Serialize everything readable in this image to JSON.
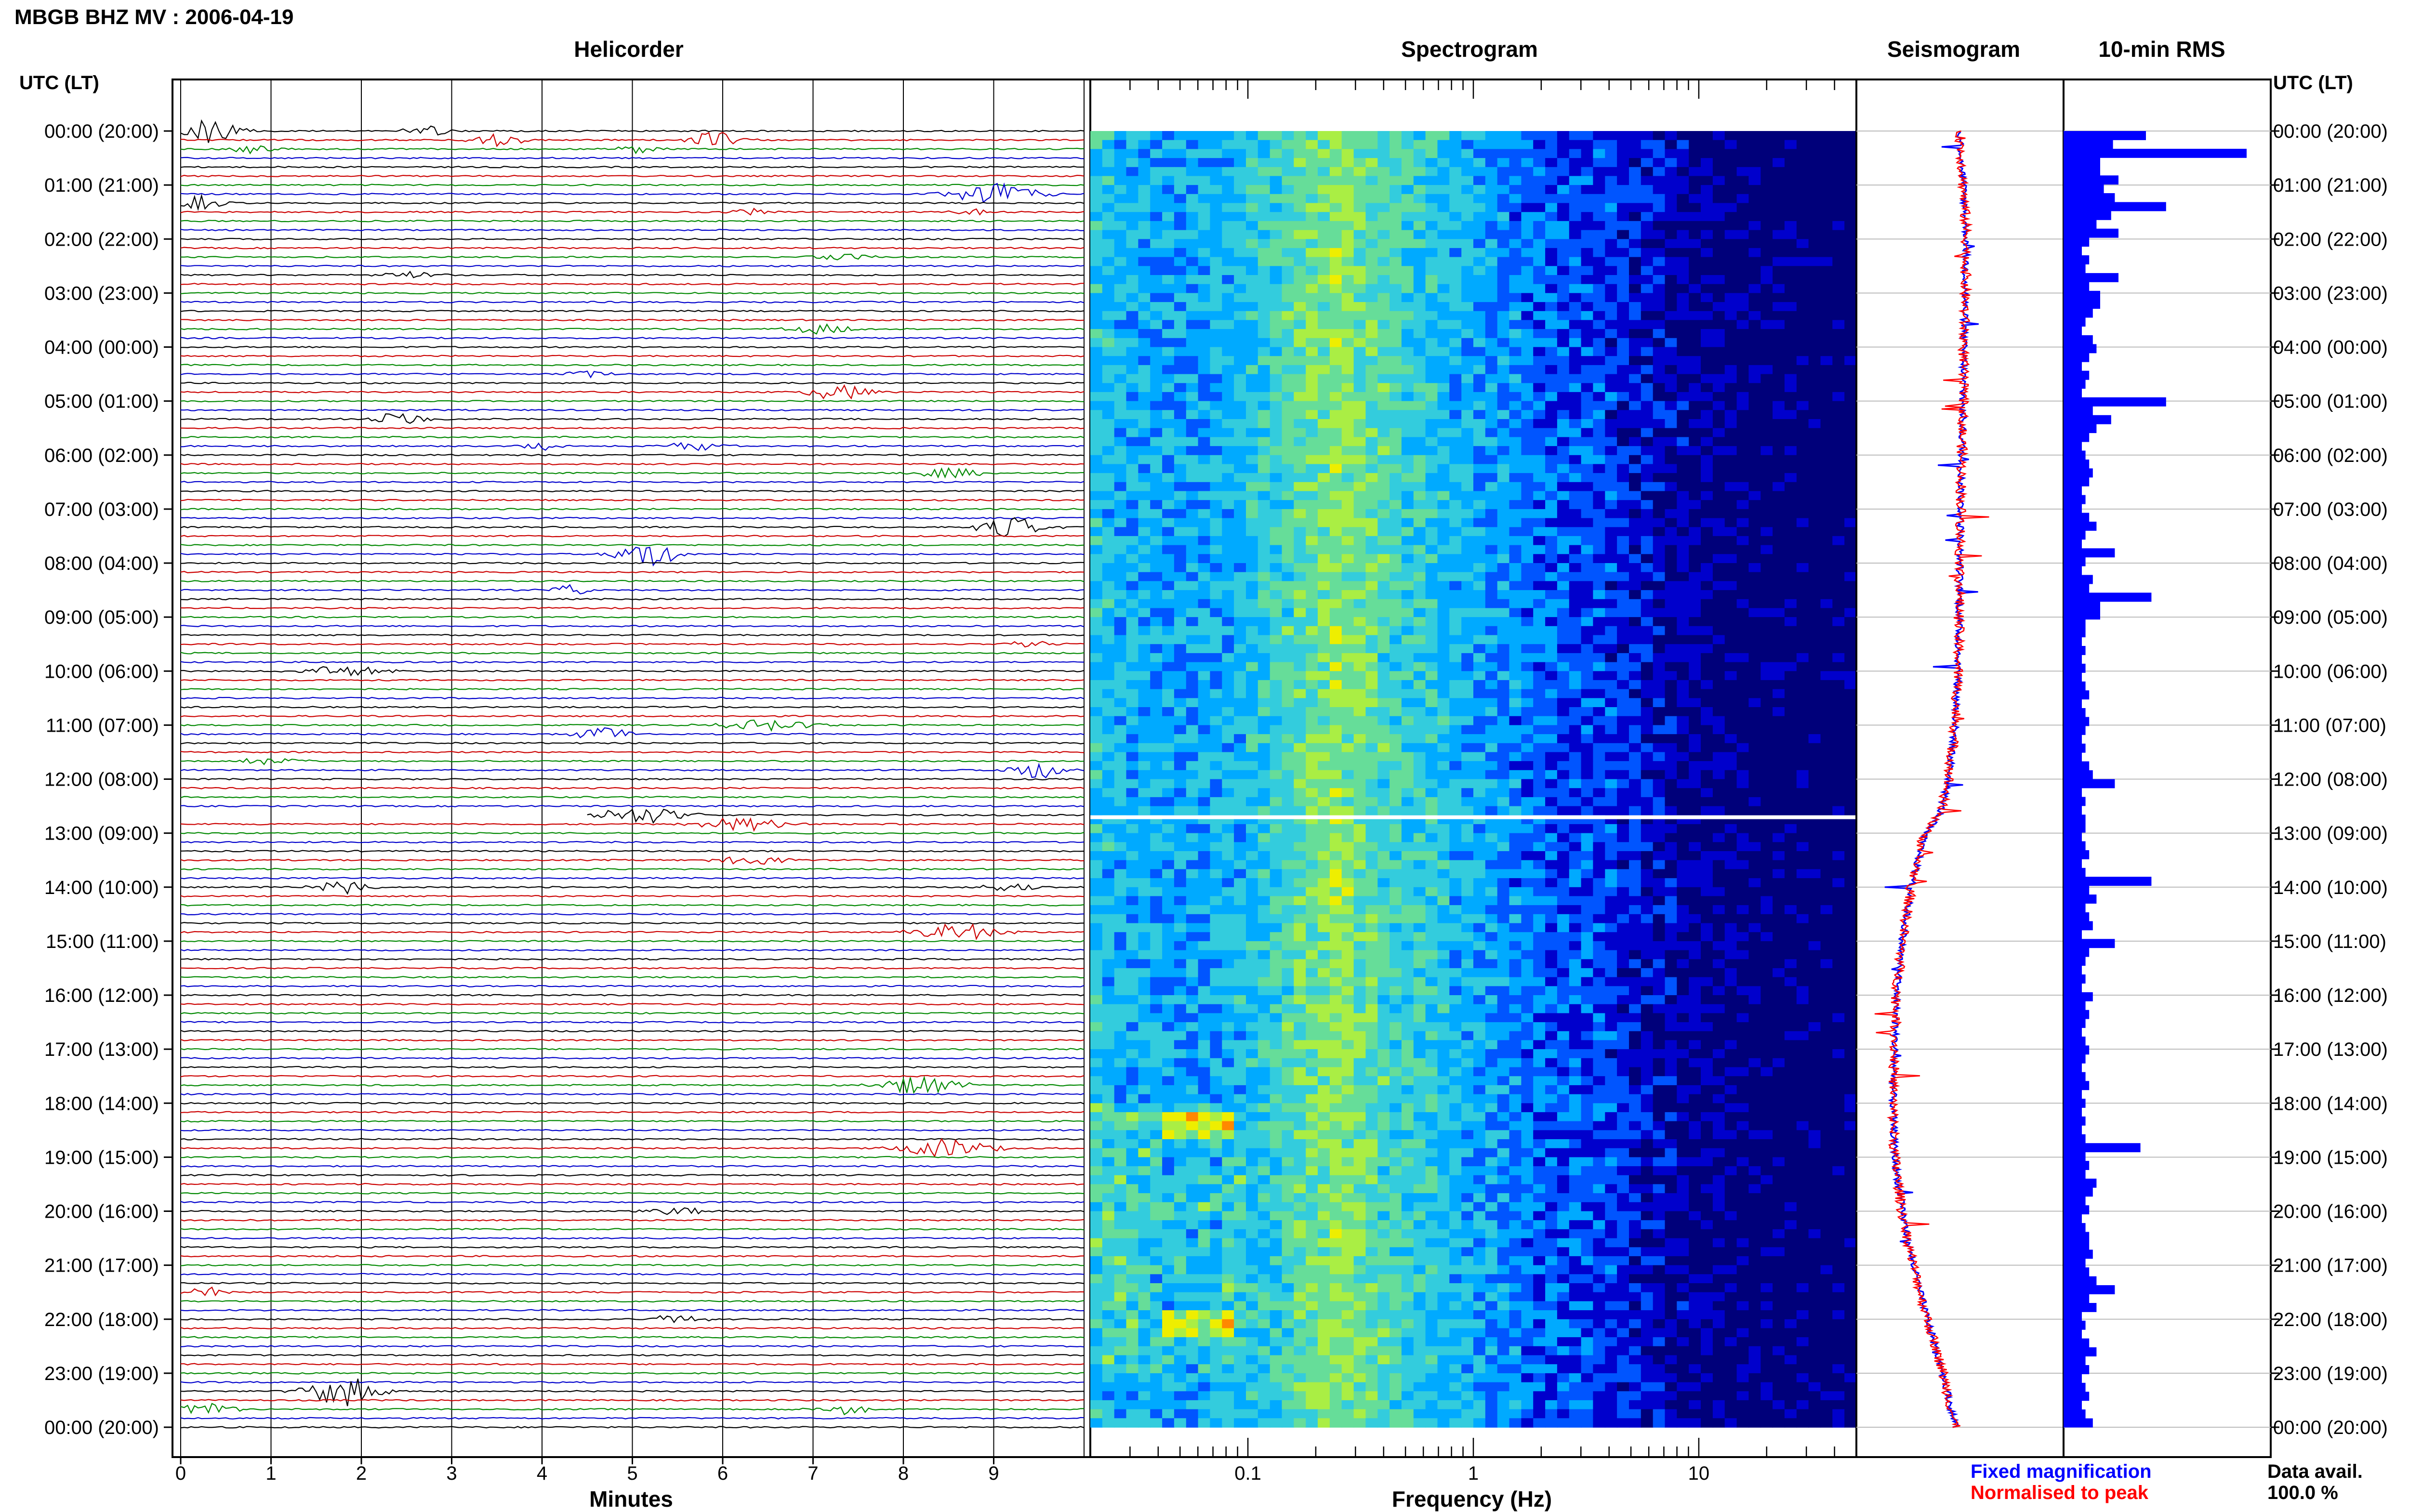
{
  "header": {
    "title": "MBGB BHZ MV : 2006-04-19"
  },
  "panels": {
    "helicorder": "Helicorder",
    "spectrogram": "Spectrogram",
    "seismogram": "Seismogram",
    "rms": "10-min RMS"
  },
  "axis_labels": {
    "time_left": "UTC (LT)",
    "time_right": "UTC (LT)",
    "minutes": "Minutes",
    "frequency": "Frequency (Hz)"
  },
  "time_ticks": [
    "00:00 (20:00)",
    "01:00 (21:00)",
    "02:00 (22:00)",
    "03:00 (23:00)",
    "04:00 (00:00)",
    "05:00 (01:00)",
    "06:00 (02:00)",
    "07:00 (03:00)",
    "08:00 (04:00)",
    "09:00 (05:00)",
    "10:00 (06:00)",
    "11:00 (07:00)",
    "12:00 (08:00)",
    "13:00 (09:00)",
    "14:00 (10:00)",
    "15:00 (11:00)",
    "16:00 (12:00)",
    "17:00 (13:00)",
    "18:00 (14:00)",
    "19:00 (15:00)",
    "20:00 (16:00)",
    "21:00 (17:00)",
    "22:00 (18:00)",
    "23:00 (19:00)",
    "00:00 (20:00)"
  ],
  "minute_ticks": [
    "0",
    "1",
    "2",
    "3",
    "4",
    "5",
    "6",
    "7",
    "8",
    "9"
  ],
  "frequency_ticks": [
    "0.1",
    "1",
    "10"
  ],
  "legend": {
    "fixed": "Fixed magnification",
    "normalised": "Normalised to peak",
    "fixed_color": "#0000ff",
    "normalised_color": "#ff0000"
  },
  "data_availability": {
    "label": "Data avail.",
    "value": "100.0 %"
  },
  "trace_colors": [
    "#000000",
    "#cc0000",
    "#008800",
    "#0000cc"
  ],
  "chart_data": [
    {
      "type": "line",
      "panel": "helicorder",
      "x_range_minutes": [
        0,
        10
      ],
      "y_range_hours": [
        0,
        24
      ],
      "rows_per_hour": 6,
      "events": [
        {
          "hour": 0.0,
          "minute": 2.7,
          "amp": 0.45,
          "dur": 0.5
        },
        {
          "hour": 0.0,
          "minute": 0.3,
          "amp": 1.0,
          "dur": 0.7
        },
        {
          "hour": 0.17,
          "minute": 3.5,
          "amp": 0.45,
          "dur": 0.6
        },
        {
          "hour": 0.17,
          "minute": 5.9,
          "amp": 0.55,
          "dur": 0.6
        },
        {
          "hour": 0.33,
          "minute": 0.8,
          "amp": 0.3,
          "dur": 0.5
        },
        {
          "hour": 0.33,
          "minute": 5.1,
          "amp": 0.3,
          "dur": 0.5
        },
        {
          "hour": 1.17,
          "minute": 9.0,
          "amp": 0.8,
          "dur": 0.9
        },
        {
          "hour": 1.33,
          "minute": 0.2,
          "amp": 0.5,
          "dur": 0.5
        },
        {
          "hour": 1.5,
          "minute": 6.3,
          "amp": 0.3,
          "dur": 0.4
        },
        {
          "hour": 1.5,
          "minute": 8.7,
          "amp": 0.25,
          "dur": 0.4
        },
        {
          "hour": 2.33,
          "minute": 7.3,
          "amp": 0.3,
          "dur": 0.6
        },
        {
          "hour": 2.67,
          "minute": 2.5,
          "amp": 0.3,
          "dur": 0.6
        },
        {
          "hour": 3.67,
          "minute": 7.1,
          "amp": 0.35,
          "dur": 0.7
        },
        {
          "hour": 4.5,
          "minute": 4.5,
          "amp": 0.25,
          "dur": 0.5
        },
        {
          "hour": 4.83,
          "minute": 7.3,
          "amp": 0.55,
          "dur": 0.7
        },
        {
          "hour": 5.33,
          "minute": 2.4,
          "amp": 0.45,
          "dur": 0.7
        },
        {
          "hour": 5.83,
          "minute": 4.0,
          "amp": 0.3,
          "dur": 0.5
        },
        {
          "hour": 5.83,
          "minute": 5.7,
          "amp": 0.35,
          "dur": 0.6
        },
        {
          "hour": 6.33,
          "minute": 8.5,
          "amp": 0.35,
          "dur": 0.8
        },
        {
          "hour": 7.33,
          "minute": 9.2,
          "amp": 0.7,
          "dur": 0.7
        },
        {
          "hour": 7.83,
          "minute": 5.2,
          "amp": 0.8,
          "dur": 0.7
        },
        {
          "hour": 8.5,
          "minute": 4.3,
          "amp": 0.35,
          "dur": 0.5
        },
        {
          "hour": 9.5,
          "minute": 9.4,
          "amp": 0.25,
          "dur": 0.6
        },
        {
          "hour": 10.0,
          "minute": 1.8,
          "amp": 0.35,
          "dur": 0.9
        },
        {
          "hour": 11.0,
          "minute": 6.5,
          "amp": 0.4,
          "dur": 1.0
        },
        {
          "hour": 11.17,
          "minute": 4.7,
          "amp": 0.5,
          "dur": 0.6
        },
        {
          "hour": 11.67,
          "minute": 1.0,
          "amp": 0.3,
          "dur": 0.6
        },
        {
          "hour": 11.83,
          "minute": 9.5,
          "amp": 0.6,
          "dur": 0.6
        },
        {
          "hour": 12.67,
          "minute": 5.1,
          "amp": 0.6,
          "dur": 1.0
        },
        {
          "hour": 12.83,
          "minute": 6.2,
          "amp": 0.45,
          "dur": 1.0
        },
        {
          "hour": 13.5,
          "minute": 6.3,
          "amp": 0.3,
          "dur": 0.8
        },
        {
          "hour": 14.0,
          "minute": 1.8,
          "amp": 0.45,
          "dur": 0.6
        },
        {
          "hour": 14.0,
          "minute": 9.2,
          "amp": 0.35,
          "dur": 0.6
        },
        {
          "hour": 14.83,
          "minute": 8.6,
          "amp": 0.6,
          "dur": 0.9
        },
        {
          "hour": 17.67,
          "minute": 8.2,
          "amp": 0.7,
          "dur": 0.8
        },
        {
          "hour": 18.83,
          "minute": 8.5,
          "amp": 0.7,
          "dur": 0.9
        },
        {
          "hour": 20.0,
          "minute": 5.5,
          "amp": 0.3,
          "dur": 0.6
        },
        {
          "hour": 21.5,
          "minute": 0.3,
          "amp": 0.4,
          "dur": 0.5
        },
        {
          "hour": 22.0,
          "minute": 5.5,
          "amp": 0.3,
          "dur": 0.6
        },
        {
          "hour": 23.33,
          "minute": 1.8,
          "amp": 1.0,
          "dur": 0.8
        },
        {
          "hour": 23.67,
          "minute": 0.3,
          "amp": 0.5,
          "dur": 0.6
        },
        {
          "hour": 23.67,
          "minute": 7.3,
          "amp": 0.4,
          "dur": 0.6
        }
      ],
      "gap": {
        "hour": 12.67,
        "minute_start": 0,
        "minute_end": 4.5
      }
    },
    {
      "type": "heatmap",
      "panel": "spectrogram",
      "x_scale": "log",
      "x_range_hz": [
        0.02,
        50
      ],
      "y_range_hours": [
        0,
        24
      ],
      "colormap": [
        "#00007a",
        "#0000cc",
        "#0055ff",
        "#00aaff",
        "#33ccdd",
        "#66dd99",
        "#aaee44",
        "#eeee00",
        "#ff8800",
        "#ff2200"
      ],
      "profile_hz": [
        0.02,
        0.05,
        0.1,
        0.15,
        0.25,
        0.4,
        0.7,
        1.2,
        2.5,
        5,
        10,
        20,
        50
      ],
      "profile_level": [
        0.42,
        0.34,
        0.4,
        0.5,
        0.62,
        0.5,
        0.42,
        0.33,
        0.25,
        0.18,
        0.08,
        0.03,
        0.0
      ],
      "data_gap_hours": [
        12.67,
        12.72
      ]
    },
    {
      "type": "line",
      "panel": "seismogram",
      "series": [
        {
          "name": "Fixed magnification",
          "color": "#0000ff"
        },
        {
          "name": "Normalised to peak",
          "color": "#ff0000"
        }
      ],
      "x_norm": [
        -1,
        1
      ],
      "hours": [
        0,
        2,
        4,
        6,
        8,
        10,
        11,
        12,
        12.67,
        13,
        14,
        15,
        16,
        17,
        18,
        19,
        20,
        21,
        22,
        23,
        24
      ],
      "offset": [
        0.0,
        0.07,
        0.04,
        0.02,
        0.0,
        -0.02,
        -0.05,
        -0.12,
        -0.22,
        -0.38,
        -0.52,
        -0.62,
        -0.68,
        -0.7,
        -0.72,
        -0.7,
        -0.62,
        -0.5,
        -0.35,
        -0.18,
        -0.05
      ]
    },
    {
      "type": "bar",
      "panel": "10-min RMS",
      "orientation": "horizontal",
      "bin_minutes": 10,
      "values": [
        0.45,
        0.27,
        1.0,
        0.2,
        0.2,
        0.3,
        0.22,
        0.28,
        0.56,
        0.26,
        0.18,
        0.3,
        0.14,
        0.1,
        0.14,
        0.12,
        0.3,
        0.14,
        0.2,
        0.2,
        0.16,
        0.12,
        0.1,
        0.16,
        0.18,
        0.14,
        0.1,
        0.14,
        0.12,
        0.1,
        0.56,
        0.16,
        0.26,
        0.18,
        0.14,
        0.1,
        0.12,
        0.14,
        0.16,
        0.14,
        0.1,
        0.12,
        0.1,
        0.14,
        0.18,
        0.12,
        0.1,
        0.28,
        0.12,
        0.1,
        0.16,
        0.14,
        0.48,
        0.2,
        0.2,
        0.12,
        0.12,
        0.1,
        0.12,
        0.1,
        0.12,
        0.1,
        0.12,
        0.14,
        0.1,
        0.12,
        0.14,
        0.12,
        0.1,
        0.12,
        0.1,
        0.14,
        0.16,
        0.28,
        0.1,
        0.12,
        0.1,
        0.12,
        0.12,
        0.1,
        0.12,
        0.14,
        0.1,
        0.12,
        0.48,
        0.14,
        0.18,
        0.12,
        0.14,
        0.16,
        0.1,
        0.28,
        0.14,
        0.12,
        0.1,
        0.12,
        0.1,
        0.16,
        0.12,
        0.14,
        0.12,
        0.1,
        0.12,
        0.14,
        0.12,
        0.1,
        0.12,
        0.14,
        0.1,
        0.12,
        0.1,
        0.12,
        0.1,
        0.12,
        0.42,
        0.12,
        0.14,
        0.12,
        0.18,
        0.16,
        0.12,
        0.14,
        0.1,
        0.12,
        0.14,
        0.14,
        0.16,
        0.12,
        0.14,
        0.18,
        0.28,
        0.14,
        0.18,
        0.1,
        0.12,
        0.1,
        0.14,
        0.18,
        0.12,
        0.14,
        0.1,
        0.12,
        0.14,
        0.1,
        0.12,
        0.16
      ]
    }
  ]
}
